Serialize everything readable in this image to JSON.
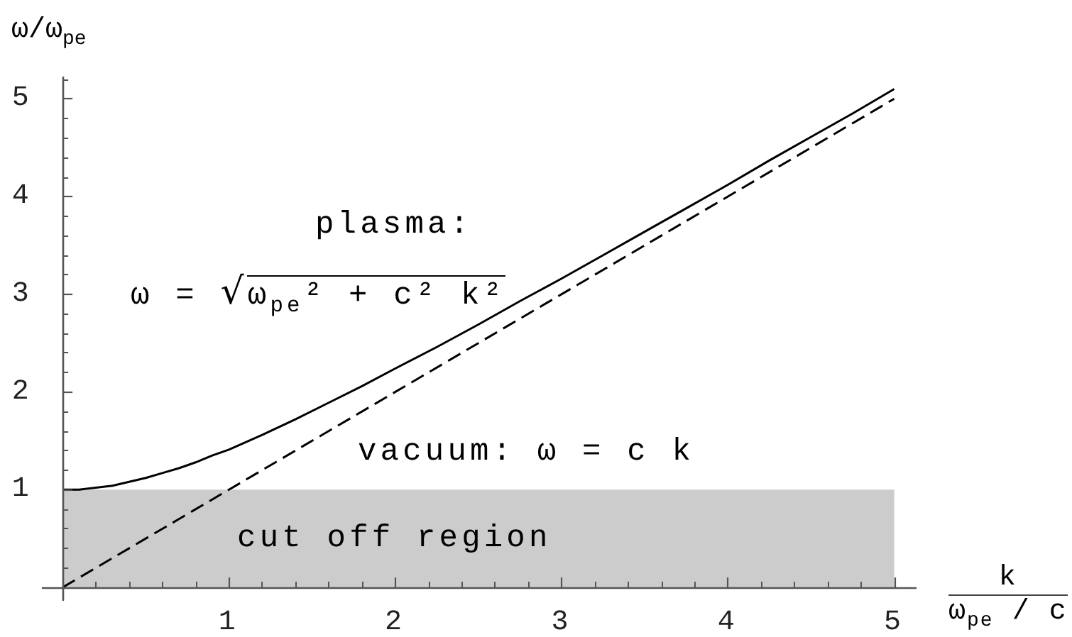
{
  "chart_data": {
    "type": "line",
    "ylabel": "ω/ω$_{pe}$",
    "xlabel": "k\nω$_{pe}$ / c",
    "annotations": [
      "plasma:",
      "ω = √ω$_{pe}$² + c² k²",
      "vacuum: ω = c k"
    ],
    "series": [
      {
        "color": "#000000",
        "line_style": "solid",
        "x": [
          0,
          0.1,
          0.2,
          0.3,
          0.4,
          0.5,
          0.6,
          0.7,
          0.8,
          0.9,
          1,
          1.2,
          1.4,
          1.6,
          1.8,
          2,
          2.25,
          2.5,
          2.75,
          3,
          3.25,
          3.5,
          3.75,
          4,
          4.25,
          4.5,
          4.75,
          5
        ],
        "values": [
          1,
          1,
          1.02,
          1.04,
          1.08,
          1.12,
          1.17,
          1.22,
          1.28,
          1.35,
          1.41,
          1.56,
          1.72,
          1.89,
          2.06,
          2.24,
          2.46,
          2.69,
          2.93,
          3.16,
          3.4,
          3.64,
          3.88,
          4.12,
          4.37,
          4.61,
          4.85,
          5.1
        ]
      },
      {
        "color": "#000000",
        "line_style": "dashed",
        "x": [
          0,
          5
        ],
        "values": [
          0,
          5
        ]
      }
    ],
    "xlim": [
      -0.12,
      5.13
    ],
    "ylim": [
      -0.13,
      5.22
    ],
    "xticks": [
      {
        "value": 0.2,
        "label": null
      },
      {
        "value": 0.4,
        "label": null
      },
      {
        "value": 0.6,
        "label": null
      },
      {
        "value": 0.8,
        "label": null
      },
      1,
      {
        "value": 1.2,
        "label": null
      },
      {
        "value": 1.4,
        "label": null
      },
      {
        "value": 1.6,
        "label": null
      },
      {
        "value": 1.8,
        "label": null
      },
      2,
      {
        "value": 2.2,
        "label": null
      },
      {
        "value": 2.4,
        "label": null
      },
      {
        "value": 2.6,
        "label": null
      },
      {
        "value": 2.8,
        "label": null
      },
      3,
      {
        "value": 3.2,
        "label": null
      },
      {
        "value": 3.4,
        "label": null
      },
      {
        "value": 3.6,
        "label": null
      },
      {
        "value": 3.8,
        "label": null
      },
      4,
      {
        "value": 4.2,
        "label": null
      },
      {
        "value": 4.4,
        "label": null
      },
      {
        "value": 4.6,
        "label": null
      },
      {
        "value": 4.8,
        "label": null
      },
      5
    ],
    "yticks": [
      {
        "value": 0.2,
        "label": null
      },
      {
        "value": 0.4,
        "label": null
      },
      {
        "value": 0.6,
        "label": null
      },
      {
        "value": 0.8,
        "label": null
      },
      1,
      {
        "value": 1.2,
        "label": null
      },
      {
        "value": 1.4,
        "label": null
      },
      {
        "value": 1.6,
        "label": null
      },
      {
        "value": 1.8,
        "label": null
      },
      2,
      {
        "value": 2.2,
        "label": null
      },
      {
        "value": 2.4,
        "label": null
      },
      {
        "value": 2.6,
        "label": null
      },
      {
        "value": 2.8,
        "label": null
      },
      3,
      {
        "value": 3.2,
        "label": null
      },
      {
        "value": 3.4,
        "label": null
      },
      {
        "value": 3.6,
        "label": null
      },
      {
        "value": 3.8,
        "label": null
      },
      4,
      {
        "value": 4.2,
        "label": null
      },
      {
        "value": 4.4,
        "label": null
      },
      {
        "value": 4.6,
        "label": null
      },
      {
        "value": 4.8,
        "label": null
      },
      5,
      {
        "value": 5.2,
        "label": null
      }
    ],
    "bands": [
      {
        "axis": "y",
        "from": 0,
        "to": 1,
        "label": "cut off region",
        "color": "#cccccc"
      }
    ],
    "grid": false,
    "marker": "none"
  }
}
